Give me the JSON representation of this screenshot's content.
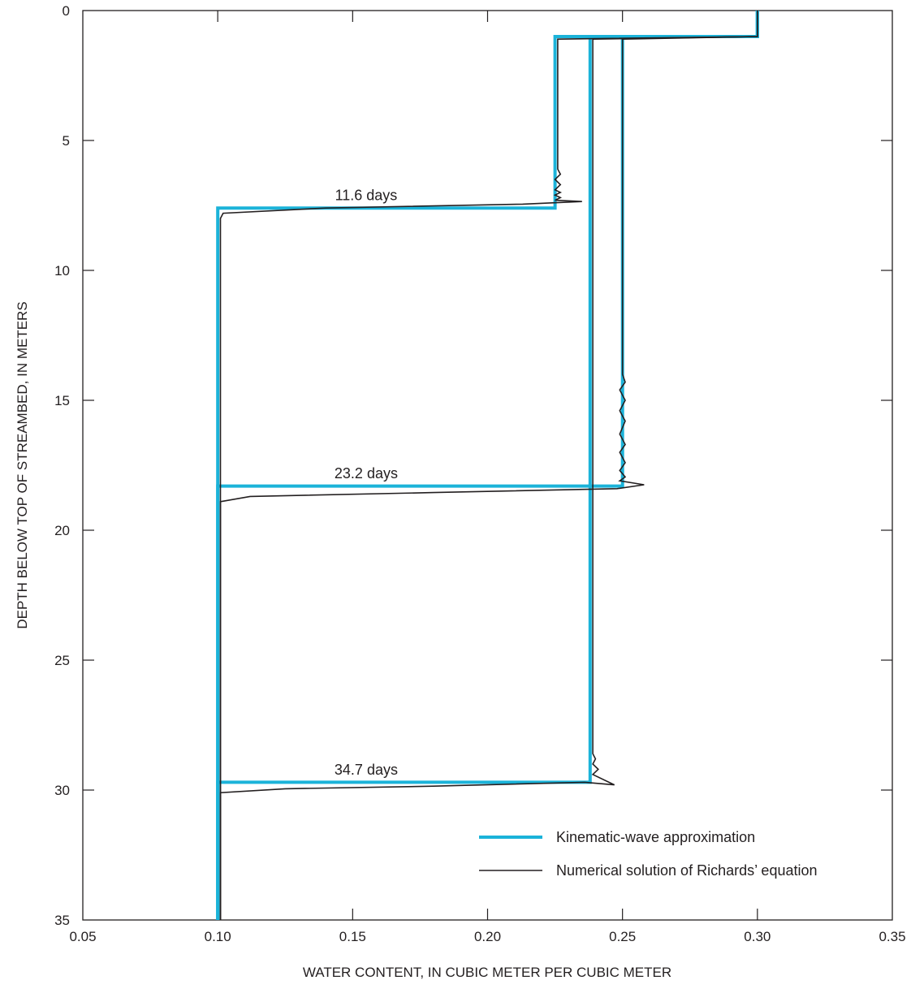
{
  "chart_data": {
    "type": "line",
    "title": "",
    "xlabel": "WATER CONTENT, IN CUBIC METER PER CUBIC METER",
    "ylabel": "DEPTH BELOW TOP OF STREAMBED, IN METERS",
    "xlim": [
      0.05,
      0.35
    ],
    "ylim": [
      0,
      35
    ],
    "y_inverted": true,
    "x_ticks": [
      0.05,
      0.1,
      0.15,
      0.2,
      0.25,
      0.3,
      0.35
    ],
    "x_tick_labels": [
      "0.05",
      "0.10",
      "0.15",
      "0.20",
      "0.25",
      "0.30",
      "0.35"
    ],
    "y_ticks": [
      0,
      5,
      10,
      15,
      20,
      25,
      30,
      35
    ],
    "y_tick_labels": [
      "0",
      "5",
      "10",
      "15",
      "20",
      "25",
      "30",
      "35"
    ],
    "grid": false,
    "legend_position": "bottom-right",
    "colors": {
      "kinematic": "#1bb3d9",
      "numerical": "#231f20",
      "axis": "#231f20"
    },
    "series": [
      {
        "name": "Kinematic-wave approximation",
        "style": "thick-cyan",
        "profiles": [
          {
            "x": [
              0.3,
              0.3,
              0.225,
              0.225,
              0.1,
              0.1
            ],
            "y": [
              0,
              1.0,
              1.0,
              7.6,
              7.6,
              35
            ]
          },
          {
            "x": [
              0.3,
              0.3,
              0.25,
              0.25,
              0.1,
              0.1
            ],
            "y": [
              0,
              1.0,
              1.0,
              18.3,
              18.3,
              35
            ]
          },
          {
            "x": [
              0.3,
              0.3,
              0.238,
              0.238,
              0.1,
              0.1
            ],
            "y": [
              0,
              1.0,
              1.0,
              29.7,
              29.7,
              35
            ]
          }
        ]
      },
      {
        "name": "Numerical solution of Richards’ equation",
        "style": "thin-black",
        "profiles": [
          {
            "x": [
              0.3,
              0.3,
              0.226,
              0.226,
              0.227,
              0.225,
              0.227,
              0.225,
              0.227,
              0.225,
              0.227,
              0.225,
              0.235,
              0.213,
              0.14,
              0.102,
              0.101,
              0.101
            ],
            "y": [
              0,
              1.0,
              1.1,
              6.1,
              6.3,
              6.5,
              6.7,
              6.9,
              7.0,
              7.1,
              7.2,
              7.3,
              7.35,
              7.45,
              7.6,
              7.8,
              8.0,
              35
            ]
          },
          {
            "x": [
              0.3,
              0.3,
              0.25,
              0.25,
              0.251,
              0.249,
              0.251,
              0.249,
              0.251,
              0.249,
              0.251,
              0.249,
              0.251,
              0.249,
              0.251,
              0.249,
              0.258,
              0.248,
              0.18,
              0.112,
              0.101,
              0.101
            ],
            "y": [
              0,
              1.0,
              1.1,
              14.0,
              14.3,
              14.6,
              15.0,
              15.4,
              15.8,
              16.3,
              16.7,
              17.0,
              17.4,
              17.7,
              17.95,
              18.1,
              18.25,
              18.4,
              18.55,
              18.7,
              18.9,
              35
            ]
          },
          {
            "x": [
              0.3,
              0.3,
              0.239,
              0.239,
              0.24,
              0.239,
              0.241,
              0.239,
              0.247,
              0.236,
              0.18,
              0.125,
              0.101,
              0.101
            ],
            "y": [
              0,
              1.0,
              1.1,
              28.6,
              28.8,
              29.0,
              29.2,
              29.4,
              29.8,
              29.7,
              29.85,
              29.95,
              30.1,
              35
            ]
          }
        ]
      }
    ],
    "annotations": [
      {
        "text": "11.6 days",
        "x": 0.155,
        "y": 7.3
      },
      {
        "text": "23.2 days",
        "x": 0.155,
        "y": 18.0
      },
      {
        "text": "34.7 days",
        "x": 0.155,
        "y": 29.4
      }
    ]
  }
}
